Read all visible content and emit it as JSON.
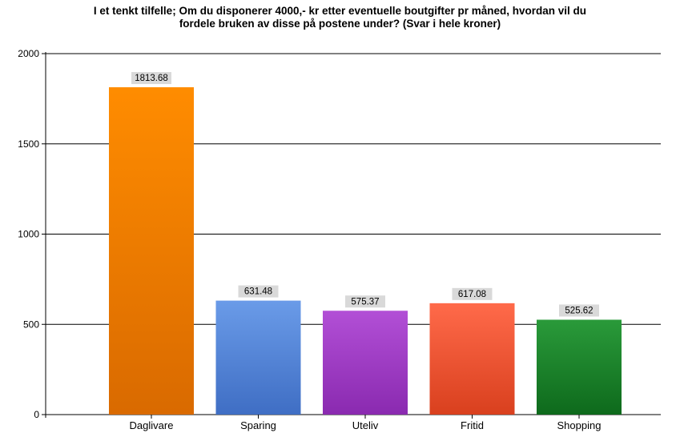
{
  "title": {
    "line1": "I et tenkt tilfelle; Om du disponerer  4000,- kr etter eventuelle boutgifter pr måned, hvordan vil du",
    "line2": "fordele bruken av disse på postene under? (Svar i hele kroner)"
  },
  "chart_data": {
    "type": "bar",
    "title": "I et tenkt tilfelle; Om du disponerer  4000,- kr etter eventuelle boutgifter pr måned, hvordan vil du fordele bruken av disse på postene under? (Svar i hele kroner)",
    "categories": [
      "Daglivare",
      "Sparing",
      "Uteliv",
      "Fritid",
      "Shopping"
    ],
    "values": [
      1813.68,
      631.48,
      575.37,
      617.08,
      525.62
    ],
    "value_labels": [
      "1813.68",
      "631.48",
      "575.37",
      "617.08",
      "525.62"
    ],
    "xlabel": "",
    "ylabel": "",
    "ylim": [
      0,
      2000
    ],
    "yticks": [
      0,
      500,
      1000,
      1500,
      2000
    ],
    "ytick_labels": [
      "0",
      "500",
      "1000",
      "1500",
      "2000"
    ],
    "grid": true,
    "legend": "none",
    "colors": [
      {
        "top": "#ff8c00",
        "bottom": "#d96a00"
      },
      {
        "top": "#6a9be8",
        "bottom": "#3f6ec4"
      },
      {
        "top": "#b24fd6",
        "bottom": "#8a2ab0"
      },
      {
        "top": "#ff6a4a",
        "bottom": "#d9401e"
      },
      {
        "top": "#2a9a3a",
        "bottom": "#0e6a1c"
      }
    ],
    "label_box_color": "#d9d9d9"
  }
}
